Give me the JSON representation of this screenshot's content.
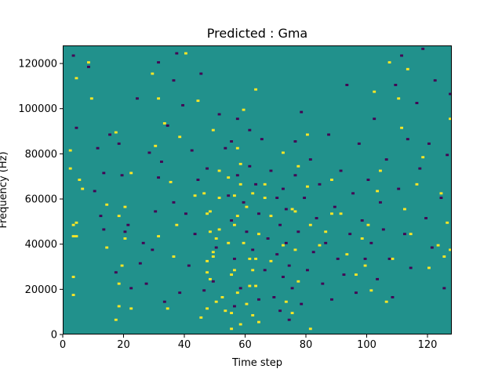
{
  "chart_data": {
    "type": "heatmap",
    "title": "Predicted : Gma",
    "xlabel": "Time step",
    "ylabel": "Frequency (Hz)",
    "xlim": [
      0,
      128
    ],
    "ylim": [
      0,
      128000
    ],
    "x_ticks": [
      0,
      20,
      40,
      60,
      80,
      100,
      120
    ],
    "y_ticks": [
      0,
      20000,
      40000,
      60000,
      80000,
      100000,
      120000
    ],
    "rows": 128,
    "cols": 128,
    "colors": {
      "background": "#21918c",
      "high": "#fde725",
      "low": "#440154"
    },
    "high_cells": [
      [
        2,
        81
      ],
      [
        2,
        73
      ],
      [
        3,
        48
      ],
      [
        3,
        43
      ],
      [
        3,
        25
      ],
      [
        3,
        17
      ],
      [
        4,
        113
      ],
      [
        4,
        49
      ],
      [
        4,
        43
      ],
      [
        5,
        68
      ],
      [
        6,
        64
      ],
      [
        8,
        120
      ],
      [
        9,
        104
      ],
      [
        14,
        57
      ],
      [
        14,
        38
      ],
      [
        17,
        89
      ],
      [
        17,
        6
      ],
      [
        18,
        12
      ],
      [
        18,
        22
      ],
      [
        18,
        52
      ],
      [
        19,
        30
      ],
      [
        20,
        56
      ],
      [
        20,
        42
      ],
      [
        22,
        11
      ],
      [
        22,
        71
      ],
      [
        29,
        115
      ],
      [
        30,
        83
      ],
      [
        31,
        104
      ],
      [
        31,
        43
      ],
      [
        33,
        93
      ],
      [
        34,
        11
      ],
      [
        35,
        67
      ],
      [
        36,
        34
      ],
      [
        37,
        48
      ],
      [
        38,
        87
      ],
      [
        40,
        124
      ],
      [
        43,
        61
      ],
      [
        44,
        103
      ],
      [
        45,
        7
      ],
      [
        46,
        62
      ],
      [
        47,
        32
      ],
      [
        47,
        11
      ],
      [
        47,
        27
      ],
      [
        47,
        53
      ],
      [
        48,
        54
      ],
      [
        48,
        45
      ],
      [
        48,
        24
      ],
      [
        49,
        90
      ],
      [
        49,
        36
      ],
      [
        49,
        34
      ],
      [
        50,
        14
      ],
      [
        50,
        42
      ],
      [
        51,
        46
      ],
      [
        51,
        60
      ],
      [
        51,
        72
      ],
      [
        52,
        16
      ],
      [
        53,
        10
      ],
      [
        54,
        40
      ],
      [
        54,
        69
      ],
      [
        55,
        9
      ],
      [
        55,
        2
      ],
      [
        55,
        26
      ],
      [
        56,
        28
      ],
      [
        56,
        61
      ],
      [
        56,
        48
      ],
      [
        57,
        82
      ],
      [
        57,
        18
      ],
      [
        57,
        52
      ],
      [
        58,
        75
      ],
      [
        58,
        66
      ],
      [
        58,
        4
      ],
      [
        59,
        40
      ],
      [
        59,
        99
      ],
      [
        60,
        56
      ],
      [
        60,
        13
      ],
      [
        61,
        33
      ],
      [
        61,
        21
      ],
      [
        62,
        62
      ],
      [
        62,
        28
      ],
      [
        62,
        8
      ],
      [
        63,
        108
      ],
      [
        63,
        33
      ],
      [
        63,
        21
      ],
      [
        64,
        44
      ],
      [
        64,
        5
      ],
      [
        66,
        60
      ],
      [
        66,
        66
      ],
      [
        68,
        32
      ],
      [
        68,
        52
      ],
      [
        72,
        80
      ],
      [
        72,
        39
      ],
      [
        73,
        14
      ],
      [
        75,
        55
      ],
      [
        75,
        9
      ],
      [
        76,
        54
      ],
      [
        76,
        37
      ],
      [
        77,
        74
      ],
      [
        77,
        23
      ],
      [
        80,
        65
      ],
      [
        80,
        88
      ],
      [
        81,
        48
      ],
      [
        81,
        2
      ],
      [
        84,
        39
      ],
      [
        86,
        45
      ],
      [
        88,
        68
      ],
      [
        88,
        53
      ],
      [
        91,
        53
      ],
      [
        93,
        35
      ],
      [
        96,
        26
      ],
      [
        98,
        42
      ],
      [
        99,
        30
      ],
      [
        100,
        48
      ],
      [
        101,
        19
      ],
      [
        102,
        107
      ],
      [
        103,
        63
      ],
      [
        104,
        72
      ],
      [
        106,
        14
      ],
      [
        107,
        120
      ],
      [
        108,
        33
      ],
      [
        110,
        104
      ],
      [
        111,
        91
      ],
      [
        112,
        55
      ],
      [
        113,
        117
      ],
      [
        114,
        44
      ],
      [
        116,
        66
      ],
      [
        118,
        78
      ],
      [
        120,
        29
      ],
      [
        123,
        39
      ],
      [
        124,
        62
      ],
      [
        125,
        34
      ],
      [
        126,
        49
      ],
      [
        127,
        37
      ],
      [
        127,
        95
      ]
    ],
    "low_cells": [
      [
        3,
        123
      ],
      [
        4,
        91
      ],
      [
        8,
        118
      ],
      [
        10,
        63
      ],
      [
        11,
        82
      ],
      [
        12,
        52
      ],
      [
        13,
        46
      ],
      [
        13,
        71
      ],
      [
        15,
        88
      ],
      [
        17,
        27
      ],
      [
        18,
        84
      ],
      [
        19,
        70
      ],
      [
        20,
        45
      ],
      [
        21,
        48
      ],
      [
        22,
        20
      ],
      [
        24,
        104
      ],
      [
        25,
        31
      ],
      [
        26,
        40
      ],
      [
        27,
        22
      ],
      [
        28,
        80
      ],
      [
        29,
        37
      ],
      [
        30,
        54
      ],
      [
        31,
        69
      ],
      [
        31,
        120
      ],
      [
        32,
        76
      ],
      [
        33,
        14
      ],
      [
        34,
        92
      ],
      [
        36,
        58
      ],
      [
        36,
        112
      ],
      [
        37,
        124
      ],
      [
        38,
        18
      ],
      [
        39,
        101
      ],
      [
        40,
        53
      ],
      [
        41,
        30
      ],
      [
        42,
        81
      ],
      [
        43,
        44
      ],
      [
        44,
        68
      ],
      [
        45,
        115
      ],
      [
        46,
        19
      ],
      [
        47,
        73
      ],
      [
        49,
        23
      ],
      [
        50,
        38
      ],
      [
        51,
        97
      ],
      [
        53,
        82
      ],
      [
        54,
        61
      ],
      [
        55,
        50
      ],
      [
        55,
        85
      ],
      [
        56,
        12
      ],
      [
        56,
        33
      ],
      [
        57,
        70
      ],
      [
        57,
        95
      ],
      [
        58,
        20
      ],
      [
        59,
        58
      ],
      [
        60,
        45
      ],
      [
        61,
        74
      ],
      [
        61,
        90
      ],
      [
        62,
        37
      ],
      [
        63,
        66
      ],
      [
        64,
        15
      ],
      [
        64,
        53
      ],
      [
        65,
        86
      ],
      [
        66,
        28
      ],
      [
        67,
        42
      ],
      [
        68,
        72
      ],
      [
        69,
        16
      ],
      [
        70,
        60
      ],
      [
        70,
        35
      ],
      [
        71,
        10
      ],
      [
        71,
        48
      ],
      [
        72,
        64
      ],
      [
        72,
        25
      ],
      [
        73,
        55
      ],
      [
        73,
        40
      ],
      [
        74,
        6
      ],
      [
        74,
        30
      ],
      [
        75,
        20
      ],
      [
        76,
        70
      ],
      [
        76,
        85
      ],
      [
        77,
        45
      ],
      [
        78,
        13
      ],
      [
        78,
        98
      ],
      [
        79,
        60
      ],
      [
        80,
        28
      ],
      [
        81,
        77
      ],
      [
        82,
        36
      ],
      [
        83,
        51
      ],
      [
        84,
        66
      ],
      [
        85,
        22
      ],
      [
        86,
        40
      ],
      [
        87,
        88
      ],
      [
        88,
        15
      ],
      [
        89,
        56
      ],
      [
        90,
        33
      ],
      [
        91,
        72
      ],
      [
        92,
        26
      ],
      [
        93,
        110
      ],
      [
        94,
        44
      ],
      [
        95,
        62
      ],
      [
        96,
        18
      ],
      [
        97,
        84
      ],
      [
        98,
        50
      ],
      [
        99,
        33
      ],
      [
        100,
        68
      ],
      [
        101,
        40
      ],
      [
        102,
        95
      ],
      [
        103,
        24
      ],
      [
        104,
        58
      ],
      [
        105,
        46
      ],
      [
        106,
        77
      ],
      [
        107,
        33
      ],
      [
        108,
        16
      ],
      [
        109,
        110
      ],
      [
        110,
        64
      ],
      [
        111,
        123
      ],
      [
        112,
        44
      ],
      [
        113,
        86
      ],
      [
        114,
        29
      ],
      [
        116,
        102
      ],
      [
        117,
        73
      ],
      [
        118,
        126
      ],
      [
        119,
        51
      ],
      [
        120,
        84
      ],
      [
        121,
        38
      ],
      [
        122,
        112
      ],
      [
        124,
        60
      ],
      [
        125,
        20
      ],
      [
        126,
        79
      ],
      [
        127,
        106
      ]
    ]
  }
}
